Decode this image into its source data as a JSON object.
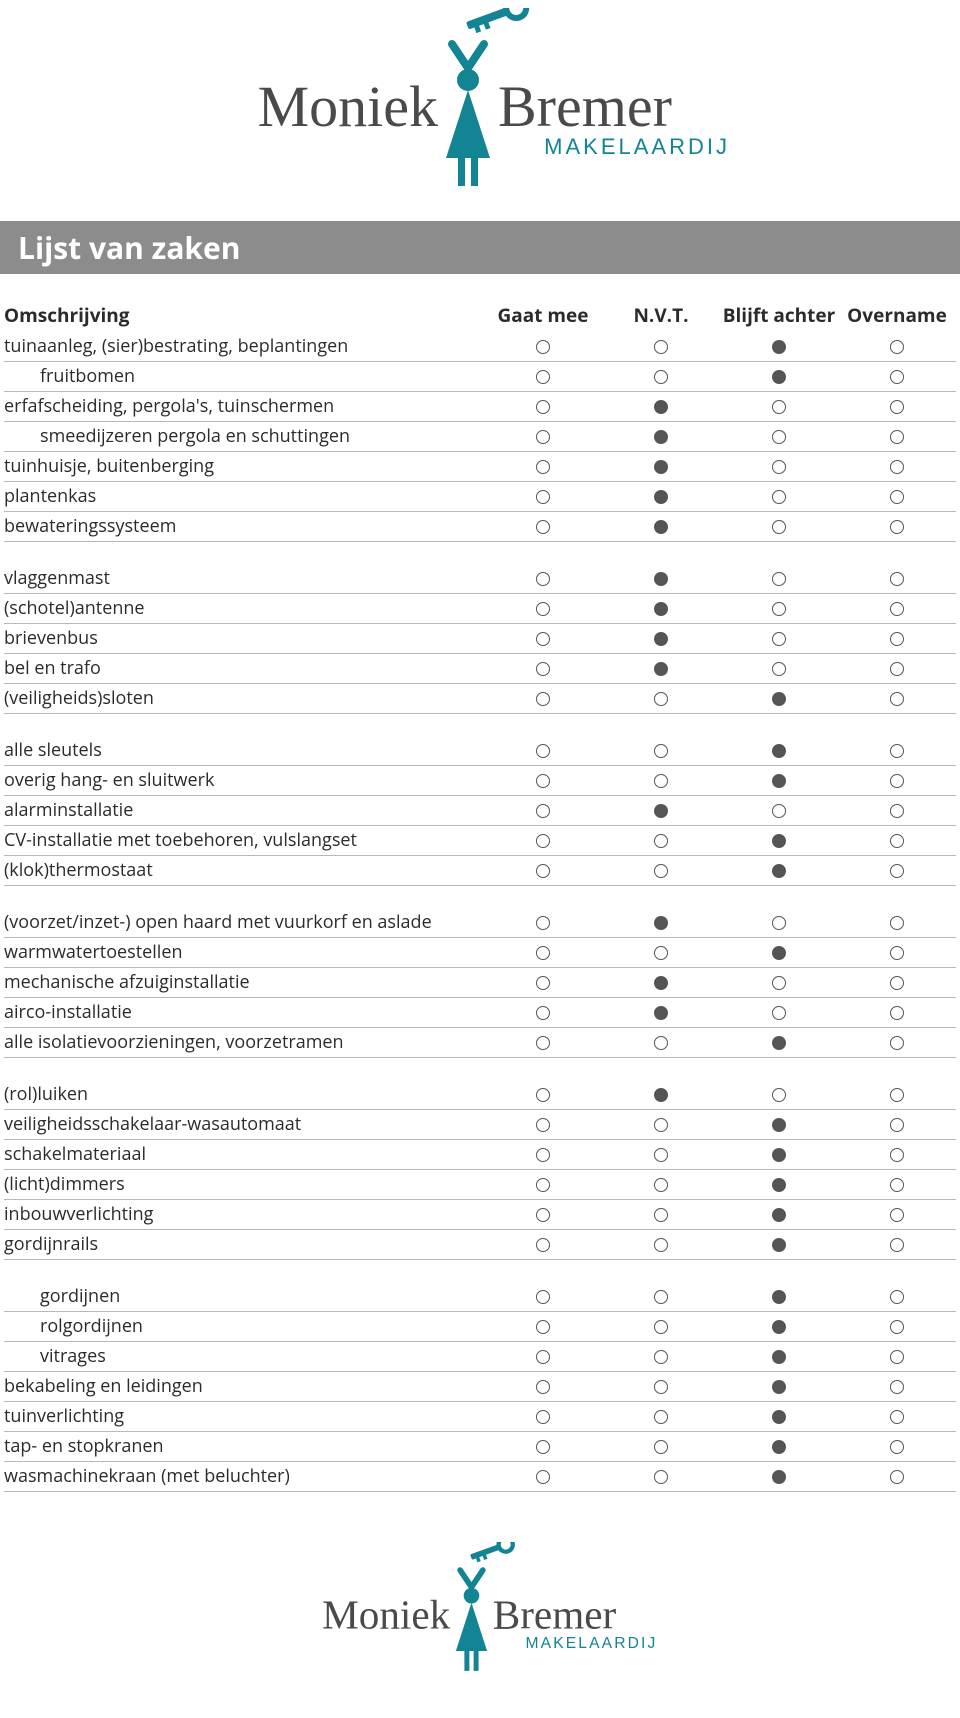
{
  "brand": {
    "name_left": "Moniek",
    "name_right": "Bremer",
    "subtitle": "MAKELAARDIJ",
    "color_primary": "#128494",
    "color_text": "#4a4a4a"
  },
  "title": "Lijst van zaken",
  "columns": {
    "desc": "Omschrijving",
    "c1": "Gaat mee",
    "c2": "N.V.T.",
    "c3": "Blijft achter",
    "c4": "Overname"
  },
  "groups": [
    {
      "rows": [
        {
          "label": "tuinaanleg, (sier)bestrating, beplantingen",
          "sel": 3,
          "indent": false
        },
        {
          "label": "fruitbomen",
          "sel": 3,
          "indent": true
        },
        {
          "label": "erfafscheiding, pergola's, tuinschermen",
          "sel": 2,
          "indent": false
        },
        {
          "label": "smeedijzeren pergola en schuttingen",
          "sel": 2,
          "indent": true
        },
        {
          "label": "tuinhuisje, buitenberging",
          "sel": 2,
          "indent": false
        },
        {
          "label": "plantenkas",
          "sel": 2,
          "indent": false
        },
        {
          "label": "bewateringssysteem",
          "sel": 2,
          "indent": false
        }
      ]
    },
    {
      "rows": [
        {
          "label": "vlaggenmast",
          "sel": 2,
          "indent": false
        },
        {
          "label": "(schotel)antenne",
          "sel": 2,
          "indent": false
        },
        {
          "label": "brievenbus",
          "sel": 2,
          "indent": false
        },
        {
          "label": "bel en trafo",
          "sel": 2,
          "indent": false
        },
        {
          "label": "(veiligheids)sloten",
          "sel": 3,
          "indent": false
        }
      ]
    },
    {
      "rows": [
        {
          "label": "alle sleutels",
          "sel": 3,
          "indent": false
        },
        {
          "label": "overig hang- en sluitwerk",
          "sel": 3,
          "indent": false
        },
        {
          "label": "alarminstallatie",
          "sel": 2,
          "indent": false
        },
        {
          "label": "CV-installatie met toebehoren, vulslangset",
          "sel": 3,
          "indent": false
        },
        {
          "label": "(klok)thermostaat",
          "sel": 3,
          "indent": false
        }
      ]
    },
    {
      "rows": [
        {
          "label": "(voorzet/inzet-) open haard met vuurkorf en aslade",
          "sel": 2,
          "indent": false
        },
        {
          "label": "warmwatertoestellen",
          "sel": 3,
          "indent": false
        },
        {
          "label": "mechanische afzuiginstallatie",
          "sel": 2,
          "indent": false
        },
        {
          "label": "airco-installatie",
          "sel": 2,
          "indent": false
        },
        {
          "label": "alle isolatievoorzieningen, voorzetramen",
          "sel": 3,
          "indent": false
        }
      ]
    },
    {
      "rows": [
        {
          "label": "(rol)luiken",
          "sel": 2,
          "indent": false
        },
        {
          "label": "veiligheidsschakelaar-wasautomaat",
          "sel": 3,
          "indent": false
        },
        {
          "label": "schakelmateriaal",
          "sel": 3,
          "indent": false
        },
        {
          "label": "(licht)dimmers",
          "sel": 3,
          "indent": false
        },
        {
          "label": "inbouwverlichting",
          "sel": 3,
          "indent": false
        },
        {
          "label": "gordijnrails",
          "sel": 3,
          "indent": false
        }
      ]
    },
    {
      "rows": [
        {
          "label": "gordijnen",
          "sel": 3,
          "indent": true
        },
        {
          "label": "rolgordijnen",
          "sel": 3,
          "indent": true
        },
        {
          "label": "vitrages",
          "sel": 3,
          "indent": true
        },
        {
          "label": "bekabeling en leidingen",
          "sel": 3,
          "indent": false
        },
        {
          "label": "tuinverlichting",
          "sel": 3,
          "indent": false
        },
        {
          "label": "tap- en stopkranen",
          "sel": 3,
          "indent": false
        },
        {
          "label": "wasmachinekraan (met beluchter)",
          "sel": 3,
          "indent": false
        }
      ]
    }
  ],
  "style": {
    "titlebar_bg": "#8c8c8c",
    "row_border": "#b8b8b8",
    "circle_border": "#555555",
    "circle_fill": "#555555"
  }
}
